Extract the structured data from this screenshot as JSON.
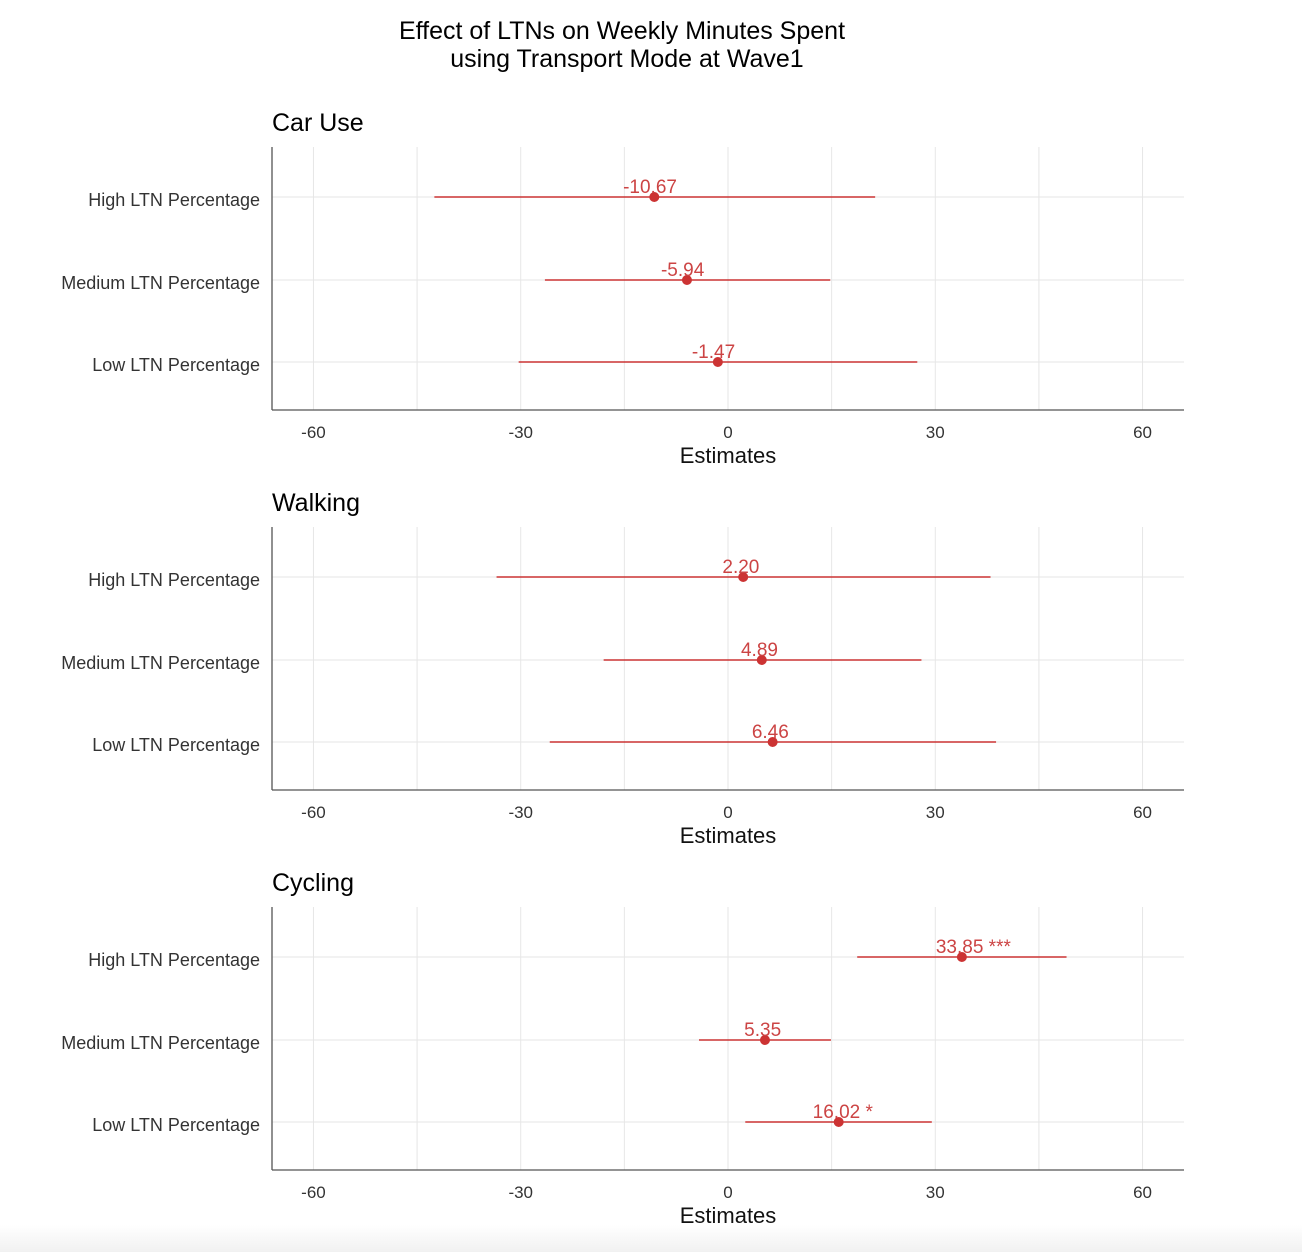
{
  "page_title": "Effect of LTNs on Weekly Minutes Spent using Transport Mode at Wave1",
  "chart_data": [
    {
      "type": "forest",
      "title_lines": [
        "Effect of LTNs on Weekly Minutes Spent",
        "using Transport Mode at Wave1"
      ],
      "panel": "Car Use",
      "xlabel": "Estimates",
      "xlim": [
        -66,
        66
      ],
      "xticks": [
        -60,
        -30,
        0,
        30,
        60
      ],
      "categories": [
        "High LTN Percentage",
        "Medium LTN Percentage",
        "Low LTN Percentage"
      ],
      "estimates": [
        -10.67,
        -5.94,
        -1.47
      ],
      "ci_low": [
        -42.5,
        -26.5,
        -30.3
      ],
      "ci_high": [
        21.3,
        14.8,
        27.4
      ],
      "labels": [
        "-10.67",
        "-5.94",
        "-1.47"
      ],
      "color": "#cc3333"
    },
    {
      "type": "forest",
      "panel": "Walking",
      "xlabel": "Estimates",
      "xlim": [
        -66,
        66
      ],
      "xticks": [
        -60,
        -30,
        0,
        30,
        60
      ],
      "categories": [
        "High LTN Percentage",
        "Medium LTN Percentage",
        "Low LTN Percentage"
      ],
      "estimates": [
        2.2,
        4.89,
        6.46
      ],
      "ci_low": [
        -33.5,
        -18.0,
        -25.8
      ],
      "ci_high": [
        38.0,
        28.0,
        38.8
      ],
      "labels": [
        "2.20",
        "4.89",
        "6.46"
      ],
      "color": "#cc3333"
    },
    {
      "type": "forest",
      "panel": "Cycling",
      "xlabel": "Estimates",
      "xlim": [
        -66,
        66
      ],
      "xticks": [
        -60,
        -30,
        0,
        30,
        60
      ],
      "categories": [
        "High LTN Percentage",
        "Medium LTN Percentage",
        "Low LTN Percentage"
      ],
      "estimates": [
        33.85,
        5.35,
        16.02
      ],
      "ci_low": [
        18.7,
        -4.2,
        2.5
      ],
      "ci_high": [
        49.0,
        14.9,
        29.5
      ],
      "labels": [
        "33.85 ***",
        "5.35",
        "16.02 *"
      ],
      "color": "#cc3333"
    }
  ]
}
